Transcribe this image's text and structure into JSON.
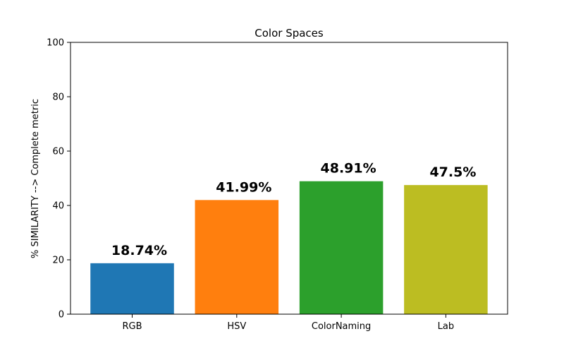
{
  "chart_data": {
    "type": "bar",
    "title": "Color Spaces",
    "xlabel": "",
    "ylabel": "% SIMILARITY --> Complete metric",
    "categories": [
      "RGB",
      "HSV",
      "ColorNaming",
      "Lab"
    ],
    "values": [
      18.74,
      41.99,
      48.91,
      47.5
    ],
    "data_labels": [
      "18.74%",
      "41.99%",
      "48.91%",
      "47.5%"
    ],
    "colors": [
      "#1f77b4",
      "#ff7f0e",
      "#2ca02c",
      "#bcbd22"
    ],
    "ylim": [
      0,
      100
    ],
    "yticks": [
      0,
      20,
      40,
      60,
      80,
      100
    ],
    "grid": false,
    "legend": "none"
  }
}
